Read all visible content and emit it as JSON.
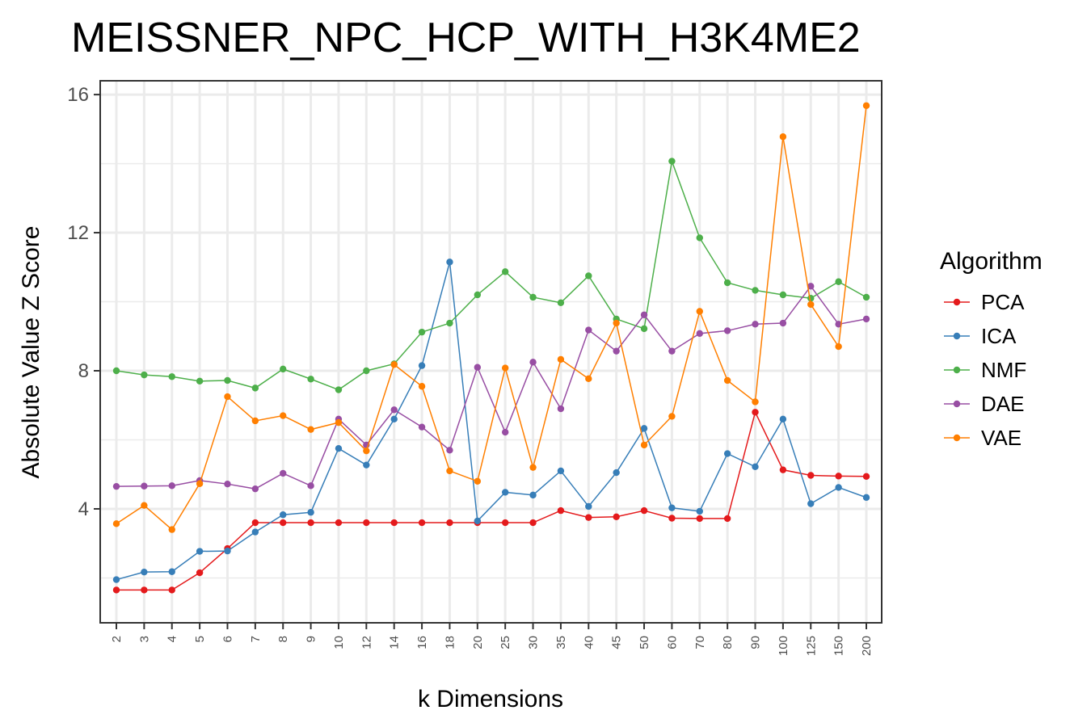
{
  "chart_data": {
    "type": "line",
    "title": "MEISSNER_NPC_HCP_WITH_H3K4ME2",
    "xlabel": "k Dimensions",
    "ylabel": "Absolute Value Z Score",
    "categories": [
      "2",
      "3",
      "4",
      "5",
      "6",
      "7",
      "8",
      "9",
      "10",
      "12",
      "14",
      "16",
      "18",
      "20",
      "25",
      "30",
      "35",
      "40",
      "45",
      "50",
      "60",
      "70",
      "80",
      "90",
      "100",
      "125",
      "150",
      "200"
    ],
    "ylim": [
      0.7,
      16.4
    ],
    "yticks": [
      4,
      8,
      12,
      16
    ],
    "ytick_labels": [
      "4",
      "8",
      "12",
      "16"
    ],
    "grid": true,
    "legend_title": "Algorithm",
    "legend_position": "right",
    "series": [
      {
        "name": "PCA",
        "color": "#e41a1c",
        "values": [
          1.65,
          1.65,
          1.65,
          2.15,
          2.85,
          3.6,
          3.6,
          3.6,
          3.6,
          3.6,
          3.6,
          3.6,
          3.6,
          3.6,
          3.6,
          3.6,
          3.95,
          3.75,
          3.77,
          3.95,
          3.73,
          3.72,
          3.72,
          6.8,
          5.13,
          4.97,
          4.95,
          4.94
        ]
      },
      {
        "name": "ICA",
        "color": "#377eb8",
        "values": [
          1.95,
          2.17,
          2.18,
          2.77,
          2.78,
          3.33,
          3.83,
          3.9,
          5.75,
          5.27,
          6.6,
          8.15,
          11.15,
          3.65,
          4.48,
          4.4,
          5.1,
          4.07,
          5.05,
          6.33,
          4.03,
          3.93,
          5.6,
          5.22,
          6.6,
          4.15,
          4.62,
          4.33
        ]
      },
      {
        "name": "NMF",
        "color": "#4daf4a",
        "values": [
          8.0,
          7.88,
          7.83,
          7.7,
          7.72,
          7.5,
          8.05,
          7.76,
          7.45,
          8.0,
          8.2,
          9.12,
          9.38,
          10.2,
          10.87,
          10.13,
          9.97,
          10.75,
          9.5,
          9.22,
          14.07,
          11.85,
          10.55,
          10.33,
          10.2,
          10.1,
          10.58,
          10.13
        ]
      },
      {
        "name": "DAE",
        "color": "#984ea3",
        "values": [
          4.65,
          4.66,
          4.67,
          4.82,
          4.72,
          4.58,
          5.03,
          4.67,
          6.6,
          5.85,
          6.87,
          6.37,
          5.7,
          8.1,
          6.22,
          8.25,
          6.9,
          9.18,
          8.57,
          9.62,
          8.57,
          9.08,
          9.16,
          9.35,
          9.38,
          10.45,
          9.35,
          9.5
        ]
      },
      {
        "name": "VAE",
        "color": "#ff7f00",
        "values": [
          3.57,
          4.1,
          3.4,
          4.73,
          7.25,
          6.55,
          6.7,
          6.3,
          6.5,
          5.68,
          8.18,
          7.55,
          5.1,
          4.8,
          8.08,
          5.2,
          8.33,
          7.77,
          9.38,
          5.85,
          6.68,
          9.72,
          7.72,
          7.1,
          14.78,
          9.92,
          8.7,
          15.68
        ]
      }
    ]
  }
}
